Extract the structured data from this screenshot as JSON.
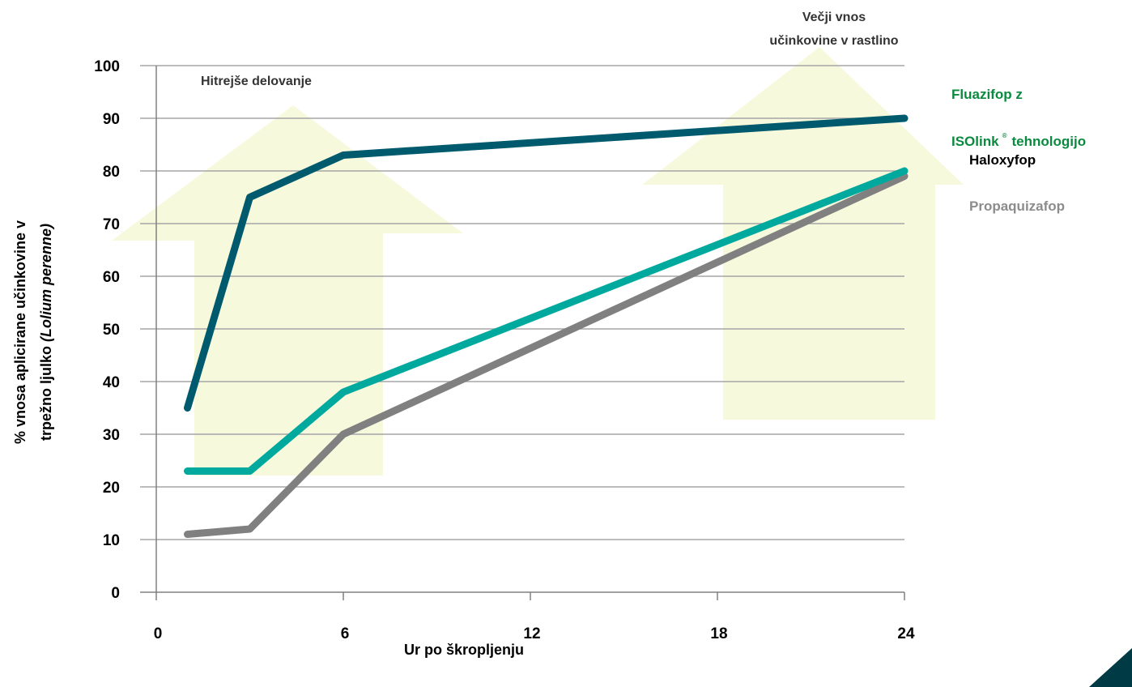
{
  "chart_data": {
    "type": "line",
    "xlabel": "Ur po škropljenju",
    "ylabel_line1": "% vnosa aplicirane učinkovine v",
    "ylabel_line2_plain": "trpežno ljulko ",
    "ylabel_line2_italic": "(Lolium perenne)",
    "xlim": [
      0,
      24
    ],
    "ylim": [
      0,
      100
    ],
    "x_ticks": [
      0,
      6,
      12,
      18,
      24
    ],
    "y_ticks": [
      0,
      10,
      20,
      30,
      40,
      50,
      60,
      70,
      80,
      90,
      100
    ],
    "grid": "horizontal",
    "legend_position": "right",
    "annotations": {
      "left_arrow": "Hitrejše delovanje",
      "right_arrow_line1": "Večji vnos",
      "right_arrow_line2": "učinkovine v rastlino"
    },
    "series": [
      {
        "name": "Fluazifop z ISOlink tehnologijo",
        "legend_line1": "Fluazifop z",
        "legend_line2a": "ISOlink",
        "legend_reg": "®",
        "legend_line2b": "tehnologijo",
        "color": "#005a6e",
        "legend_color": "#0a8a3e",
        "x": [
          1,
          3,
          6,
          24
        ],
        "y": [
          35,
          75,
          83,
          90
        ]
      },
      {
        "name": "Haloxyfop",
        "color": "#00a99d",
        "legend_color": "#000000",
        "x": [
          1,
          3,
          6,
          24
        ],
        "y": [
          23,
          23,
          38,
          80
        ]
      },
      {
        "name": "Propaquizafop",
        "color": "#808080",
        "legend_color": "#8c8c8c",
        "x": [
          1,
          3,
          6,
          24
        ],
        "y": [
          11,
          12,
          30,
          79
        ]
      }
    ]
  },
  "colors": {
    "arrow_fill": "#f7f9dd",
    "grid": "#a6a6a6",
    "axis": "#808080",
    "corner": "#003a45"
  }
}
